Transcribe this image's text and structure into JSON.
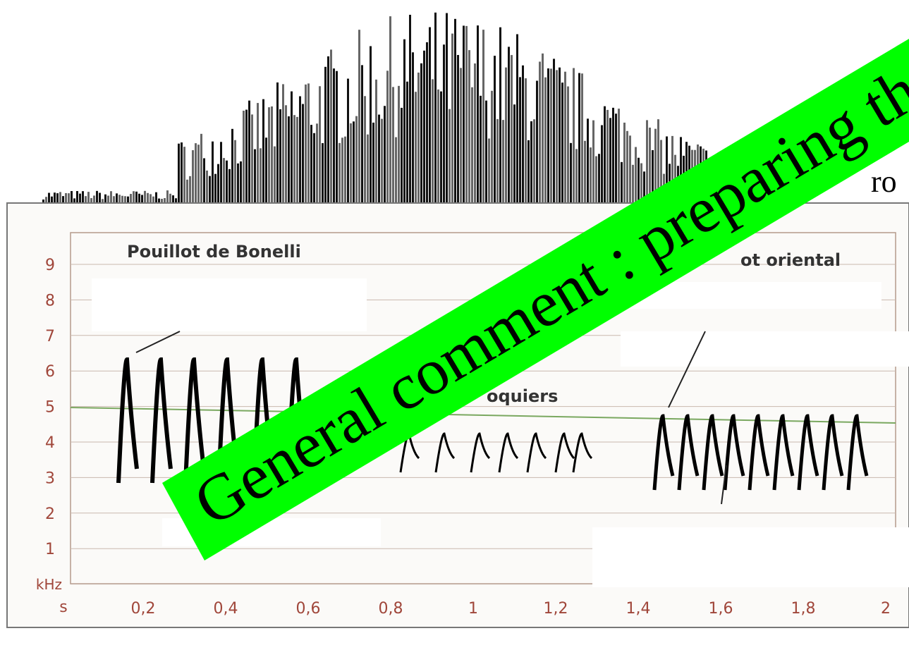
{
  "top_fragment": "ro",
  "sonogram": {
    "titles": [
      "Pouillot de Bonelli",
      "oquiers",
      "ot oriental"
    ],
    "y_unit": "kHz",
    "y_labels": [
      "9",
      "8",
      "7",
      "6",
      "5",
      "4",
      "3",
      "2",
      "1"
    ],
    "x_unit": "s",
    "x_labels": [
      "0,2",
      "0,4",
      "0,6",
      "0,8",
      "1",
      "1,2",
      "1,4",
      "1,6",
      "1,8",
      "2"
    ]
  },
  "banner": "General comment : preparing the"
}
